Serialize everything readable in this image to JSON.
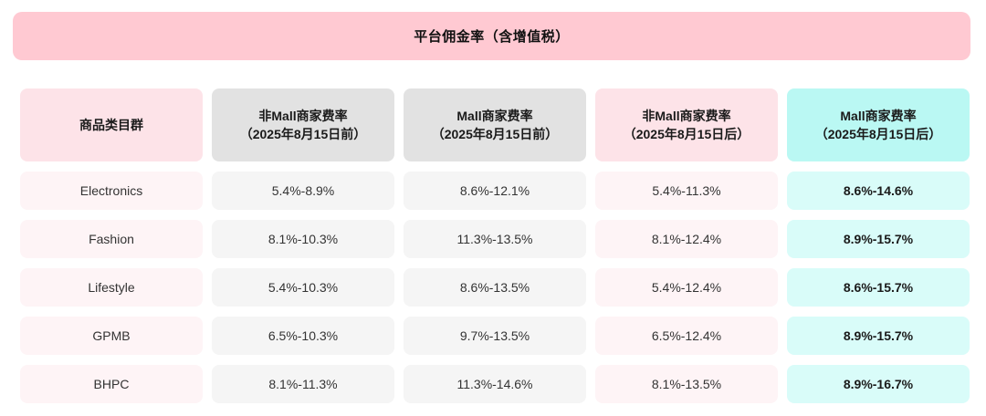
{
  "banner": {
    "title": "平台佣金率（含增值税）"
  },
  "table": {
    "headers": [
      {
        "line1": "商品类目群",
        "line2": ""
      },
      {
        "line1": "非Mall商家费率",
        "line2": "（2025年8月15日前）"
      },
      {
        "line1": "Mall商家费率",
        "line2": "（2025年8月15日前）"
      },
      {
        "line1": "非Mall商家费率",
        "line2": "（2025年8月15日后）"
      },
      {
        "line1": "Mall商家费率",
        "line2": "（2025年8月15日后）"
      }
    ]
  },
  "chart_data": {
    "type": "table",
    "title": "平台佣金率（含增值税）",
    "columns": [
      "商品类目群",
      "非Mall商家费率（2025年8月15日前）",
      "Mall商家费率（2025年8月15日前）",
      "非Mall商家费率（2025年8月15日后）",
      "Mall商家费率（2025年8月15日后）"
    ],
    "rows": [
      [
        "Electronics",
        "5.4%-8.9%",
        "8.6%-12.1%",
        "5.4%-11.3%",
        "8.6%-14.6%"
      ],
      [
        "Fashion",
        "8.1%-10.3%",
        "11.3%-13.5%",
        "8.1%-12.4%",
        "8.9%-15.7%"
      ],
      [
        "Lifestyle",
        "5.4%-10.3%",
        "8.6%-13.5%",
        "5.4%-12.4%",
        "8.6%-15.7%"
      ],
      [
        "GPMB",
        "6.5%-10.3%",
        "9.7%-13.5%",
        "6.5%-12.4%",
        "8.9%-15.7%"
      ],
      [
        "BHPC",
        "8.1%-11.3%",
        "11.3%-14.6%",
        "8.1%-13.5%",
        "8.9%-16.7%"
      ]
    ]
  },
  "colors": {
    "banner_bg": "#FFC9D2",
    "header_pink": "#FDE3E8",
    "header_gray": "#E2E2E2",
    "header_cyan": "#BAF8F3",
    "cell_pink": "#FEF4F6",
    "cell_gray": "#F5F5F5",
    "cell_cyan": "#D9FCF9"
  }
}
